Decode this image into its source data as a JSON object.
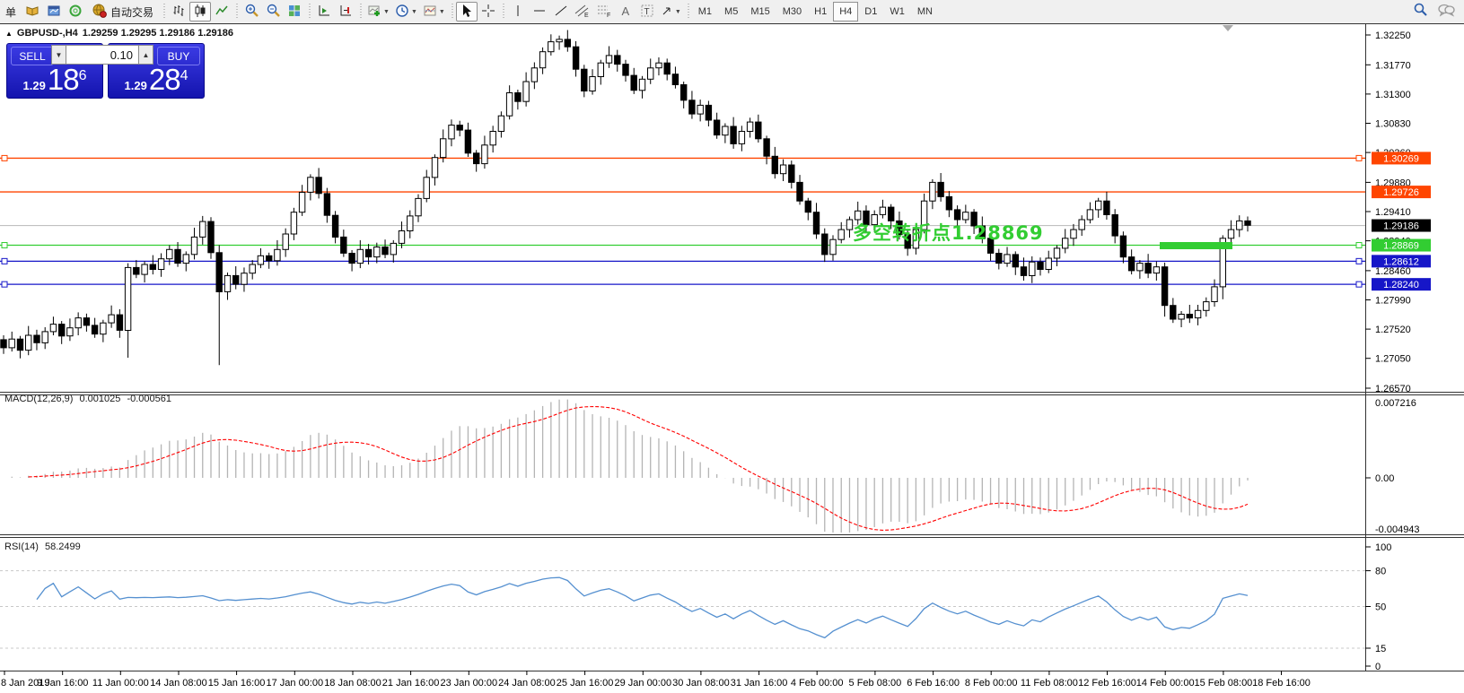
{
  "toolbar": {
    "new_order_label": "单",
    "auto_trading_label": "自动交易",
    "icons": [
      "new-order",
      "history-icon",
      "chart-window-icon",
      "market-watch-icon",
      "autotrading-globe-icon",
      "bar-chart-icon",
      "candlestick-chart-icon",
      "line-chart-icon",
      "zoom-in-icon",
      "zoom-out-icon",
      "tile-windows-icon",
      "auto-scroll-icon",
      "chart-shift-icon",
      "indicators-icon",
      "periods-icon",
      "templates-icon",
      "cursor-icon",
      "crosshair-icon",
      "vertical-line-icon",
      "horizontal-line-icon",
      "trendline-icon",
      "channel-icon",
      "fibonacci-icon",
      "text-icon",
      "text-label-icon",
      "arrows-icon",
      "search-icon",
      "chat-icon"
    ],
    "timeframes": [
      "M1",
      "M5",
      "M15",
      "M30",
      "H1",
      "H4",
      "D1",
      "W1",
      "MN"
    ],
    "active_timeframe": "H4"
  },
  "symbol": {
    "collapse": "▲",
    "title": "GBPUSD-,H4",
    "ohlc": "1.29259 1.29295 1.29186 1.29186"
  },
  "trade": {
    "sell_label": "SELL",
    "buy_label": "BUY",
    "volume": "0.10",
    "sell_price_prefix": "1.29",
    "sell_price_big": "18",
    "sell_price_sup": "6",
    "buy_price_prefix": "1.29",
    "buy_price_big": "28",
    "buy_price_sup": "4"
  },
  "annotation": {
    "text": "多空转折点1.28869",
    "color": "#32CD32"
  },
  "indicators": {
    "macd": {
      "label": "MACD(12,26,9)",
      "main_value": "0.001025",
      "signal_value": "-0.000561"
    },
    "rsi": {
      "label": "RSI(14)",
      "value": "58.2499"
    }
  },
  "chart_data": {
    "type": "candlestick",
    "symbol": "GBPUSD-",
    "timeframe": "H4",
    "price_axis": {
      "ticks": [
        "1.32250",
        "1.31770",
        "1.31300",
        "1.30830",
        "1.30360",
        "1.29880",
        "1.29410",
        "1.28940",
        "1.28460",
        "1.27990",
        "1.27520",
        "1.27050",
        "1.26570"
      ],
      "top_value": 1.3225,
      "bottom_value": 1.2657
    },
    "levels": [
      {
        "value": "1.30269",
        "price": 1.30269,
        "color": "#FF4500",
        "handles": true
      },
      {
        "value": "1.29726",
        "price": 1.29726,
        "color": "#FF4500",
        "handles": false
      },
      {
        "value": "1.28869",
        "price": 1.28869,
        "color": "#32CD32",
        "handles": true
      },
      {
        "value": "1.28612",
        "price": 1.28612,
        "color": "#1616C8",
        "handles": true
      },
      {
        "value": "1.28240",
        "price": 1.2824,
        "color": "#1616C8",
        "handles": true
      }
    ],
    "current_price": {
      "value": "1.29186",
      "price": 1.29186,
      "line_color": "#C0C0C0",
      "tag_color": "#000000"
    },
    "highlight_zone": {
      "start_bar": 139.4,
      "end_bar": 148.2,
      "price": 1.28869,
      "color": "#32CD32"
    },
    "first_open": 1.2735,
    "closes": [
      1.2722,
      1.2736,
      1.2718,
      1.2742,
      1.273,
      1.2748,
      1.276,
      1.2741,
      1.2754,
      1.277,
      1.2758,
      1.2744,
      1.2762,
      1.2775,
      1.275,
      1.2851,
      1.284,
      1.2856,
      1.2848,
      1.2865,
      1.288,
      1.2858,
      1.2872,
      1.29,
      1.2925,
      1.2875,
      1.2812,
      1.2838,
      1.2824,
      1.2842,
      1.2856,
      1.287,
      1.2862,
      1.288,
      1.2905,
      1.294,
      1.2972,
      1.2996,
      1.297,
      1.2935,
      1.29,
      1.2874,
      1.2858,
      1.288,
      1.2868,
      1.2884,
      1.2872,
      1.289,
      1.291,
      1.2934,
      1.2962,
      1.2996,
      1.3028,
      1.3058,
      1.308,
      1.3072,
      1.3035,
      1.3018,
      1.3048,
      1.307,
      1.3095,
      1.3132,
      1.3118,
      1.315,
      1.3172,
      1.3198,
      1.3214,
      1.3218,
      1.3206,
      1.317,
      1.3135,
      1.3158,
      1.318,
      1.3192,
      1.3178,
      1.316,
      1.3136,
      1.3154,
      1.3172,
      1.318,
      1.3162,
      1.3145,
      1.312,
      1.3098,
      1.3112,
      1.3088,
      1.3064,
      1.3078,
      1.305,
      1.307,
      1.3085,
      1.3058,
      1.303,
      1.3002,
      1.3016,
      1.2988,
      1.2958,
      1.294,
      1.2905,
      1.2872,
      1.2896,
      1.2912,
      1.2928,
      1.2942,
      1.292,
      1.2936,
      1.2948,
      1.2926,
      1.2904,
      1.2882,
      1.2912,
      1.2958,
      1.2988,
      1.2965,
      1.2944,
      1.2928,
      1.294,
      1.2918,
      1.2898,
      1.2874,
      1.2858,
      1.2872,
      1.2852,
      1.2838,
      1.286,
      1.2848,
      1.2866,
      1.2882,
      1.2898,
      1.2912,
      1.2928,
      1.2944,
      1.2958,
      1.2936,
      1.2902,
      1.2868,
      1.2846,
      1.2858,
      1.2842,
      1.2852,
      1.279,
      1.2768,
      1.2776,
      1.277,
      1.2782,
      1.2796,
      1.282,
      1.2898,
      1.2912,
      1.2926,
      1.2919
    ],
    "wick_overrides": {
      "15": {
        "l": 1.2706
      },
      "26": {
        "l": 1.2694
      },
      "67": {
        "h": 1.3224
      },
      "112": {
        "h": 1.2992
      },
      "132": {
        "h": 1.2962
      },
      "140": {
        "l": 1.2772
      },
      "146": {
        "l": 1.2788
      },
      "147": {
        "l": 1.28
      }
    },
    "macd_axis": {
      "top": "0.007216",
      "zero": "0.00",
      "bottom": "-0.004943",
      "hist_color": "#B4B4B4",
      "signal_color": "#FF0000"
    },
    "rsi_axis": {
      "ticks": [
        "100",
        "80",
        "50",
        "15",
        "0"
      ],
      "levels": [
        80,
        50,
        15
      ],
      "line_color": "#5590D0"
    },
    "time_axis": [
      "8 Jan 2019",
      "9 Jan 16:00",
      "11 Jan 00:00",
      "14 Jan 08:00",
      "15 Jan 16:00",
      "17 Jan 00:00",
      "18 Jan 08:00",
      "21 Jan 16:00",
      "23 Jan 00:00",
      "24 Jan 08:00",
      "25 Jan 16:00",
      "29 Jan 00:00",
      "30 Jan 08:00",
      "31 Jan 16:00",
      "4 Feb 00:00",
      "5 Feb 08:00",
      "6 Feb 16:00",
      "8 Feb 00:00",
      "11 Feb 08:00",
      "12 Feb 16:00",
      "14 Feb 00:00",
      "15 Feb 08:00",
      "18 Feb 16:00"
    ],
    "colors": {
      "bull_fill": "#FFFFFF",
      "bear_fill": "#000000",
      "outline": "#000000",
      "background": "#FFFFFF",
      "axis_text": "#000000"
    }
  }
}
